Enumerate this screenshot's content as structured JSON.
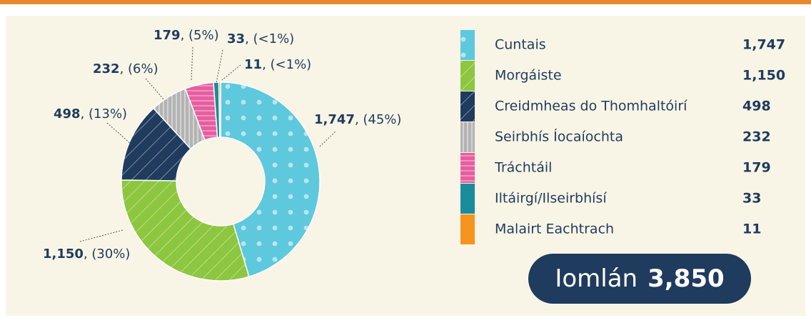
{
  "chart_data": {
    "type": "donut",
    "categories": [
      "Cuntais",
      "Morgáiste",
      "Creidmheas do Thomhaltóirí",
      "Seirbhís Íocaíochta",
      "Tráchtáil",
      "Iltáirgí/Ilseirbhísí",
      "Malairt Eachtrach"
    ],
    "values": [
      1747,
      1150,
      498,
      232,
      179,
      33,
      11
    ],
    "value_labels": [
      "1,747",
      "1,150",
      "498",
      "232",
      "179",
      "33",
      "11"
    ],
    "percent_labels": [
      ", (45%)",
      ", (30%)",
      ", (13%)",
      ", (6%)",
      ", (5%)",
      ", (<1%)",
      ", (<1%)"
    ],
    "colors": [
      "#5ec8dd",
      "#8dc63f",
      "#1f3b5e",
      "#b3b3b3",
      "#e75ea0",
      "#1a8c9b",
      "#f7941d"
    ],
    "total_label": "Iomlán",
    "total": 3850,
    "total_value_label": "3,850"
  }
}
